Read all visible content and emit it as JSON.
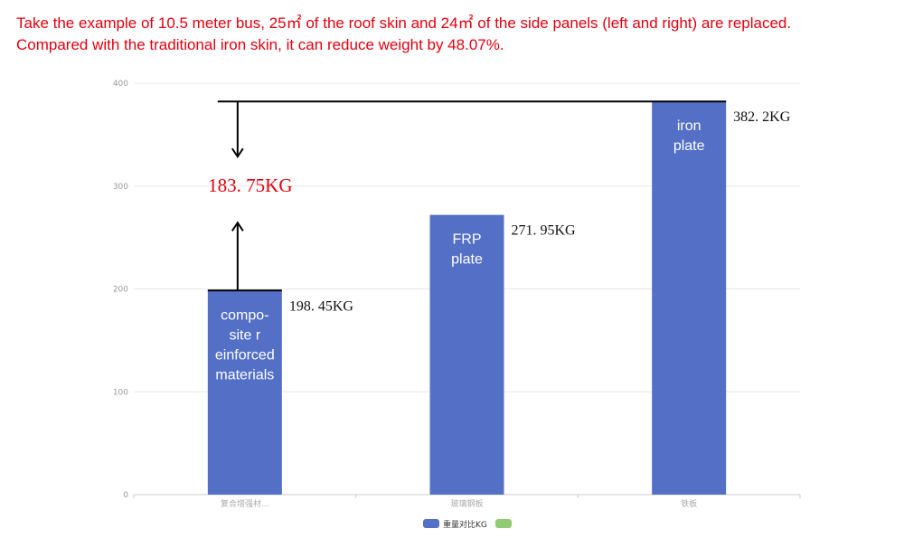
{
  "caption": {
    "line1": "Take the example of 10.5 meter bus, 25㎡ of the roof skin and 24㎡ of the side panels (left and right) are replaced.",
    "line2": "Compared with the traditional iron skin, it can reduce weight by 48.07%."
  },
  "colors": {
    "bar": "#5470c6",
    "legend_second": "#91cc75",
    "grid": "#e8e8e8",
    "annotation": "#e3000f"
  },
  "chart_data": {
    "type": "bar",
    "categories": [
      "复合增强材...",
      "玻璃钢板",
      "铁板"
    ],
    "series": [
      {
        "name": "重量对比KG",
        "values": [
          198.45,
          271.95,
          382.2
        ]
      }
    ],
    "legend": [
      "重量对比KG",
      ""
    ],
    "legend_position": "bottom-center",
    "ylim": [
      0,
      400
    ],
    "yticks": [
      0,
      100,
      200,
      300,
      400
    ],
    "grid": true,
    "data_labels": [
      "198. 45KG",
      "271. 95KG",
      "382. 2KG"
    ],
    "bar_labels": [
      [
        "compo-",
        "site r",
        "einforced",
        "materials"
      ],
      [
        "FRP",
        "plate"
      ],
      [
        "iron",
        "plate"
      ]
    ],
    "annotation": {
      "text": "183. 75KG",
      "from_value": 382.2,
      "to_value": 198.45
    }
  }
}
